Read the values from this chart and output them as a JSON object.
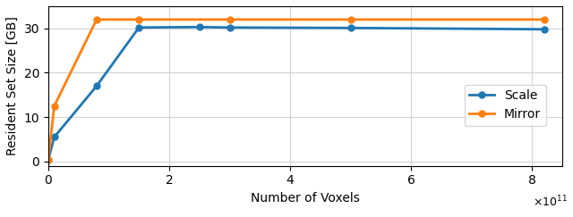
{
  "scale_x": [
    0,
    10000000000.0,
    80000000000.0,
    150000000000.0,
    250000000000.0,
    300000000000.0,
    500000000000.0,
    820000000000.0
  ],
  "scale_y": [
    0.3,
    5.5,
    17.0,
    30.2,
    30.3,
    30.2,
    30.1,
    29.8
  ],
  "mirror_x": [
    0,
    10000000000.0,
    80000000000.0,
    150000000000.0,
    300000000000.0,
    500000000000.0,
    820000000000.0
  ],
  "mirror_y": [
    0.3,
    12.5,
    32.0,
    32.0,
    32.0,
    32.0,
    32.0
  ],
  "scale_color": "#1f77b4",
  "mirror_color": "#ff7f0e",
  "xlabel": "Number of Voxels",
  "ylabel": "Resident Set Size [GB]",
  "xlim": [
    0,
    850000000000.0
  ],
  "ylim": [
    -1,
    35
  ],
  "yticks": [
    0,
    10,
    20,
    30
  ],
  "xticks": [
    0,
    200000000000.0,
    400000000000.0,
    600000000000.0,
    800000000000.0
  ],
  "xtick_labels": [
    "0",
    "2",
    "4",
    "6",
    "8"
  ],
  "scale_label": "Scale",
  "mirror_label": "Mirror",
  "marker": "o",
  "markersize": 5,
  "linewidth": 2.0
}
